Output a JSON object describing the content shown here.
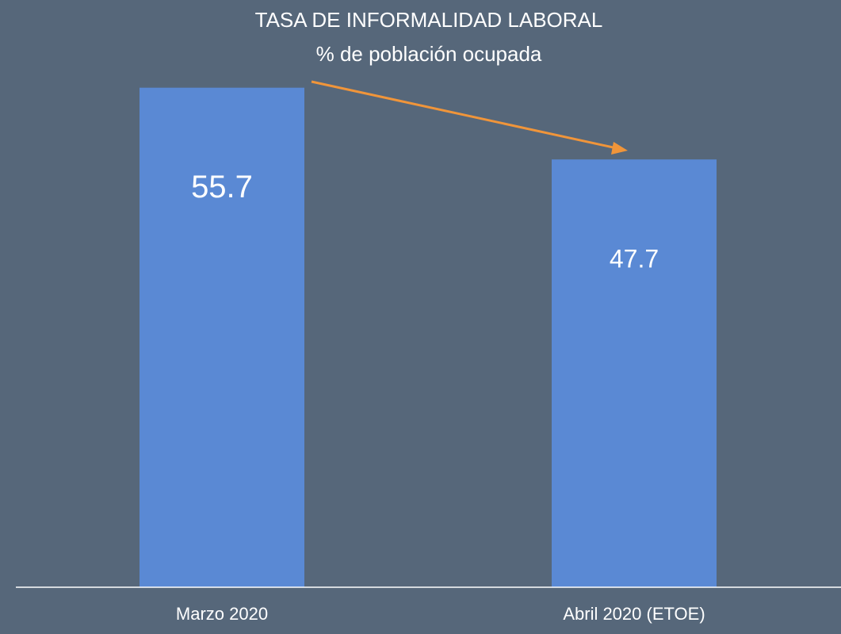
{
  "chart_data": {
    "type": "bar",
    "title": "TASA DE INFORMALIDAD LABORAL",
    "subtitle": "% de población ocupada",
    "categories": [
      "Marzo 2020",
      "Abril 2020 (ETOE)"
    ],
    "values": [
      55.7,
      47.7
    ],
    "color": "#5a89d4",
    "ylim": [
      0,
      60
    ]
  }
}
